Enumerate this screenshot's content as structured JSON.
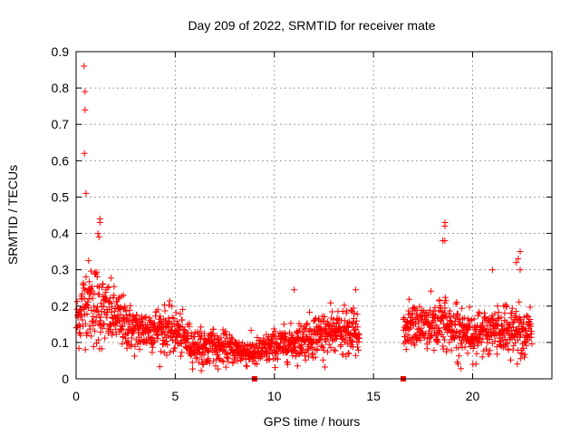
{
  "chart_data": {
    "type": "scatter",
    "title": "Day 209 of 2022, SRMTID for receiver mate",
    "xlabel": "GPS time / hours",
    "ylabel": "SRMTID / TECUs",
    "xlim": [
      0,
      24
    ],
    "ylim": [
      0,
      0.9
    ],
    "x_ticks": [
      0,
      5,
      10,
      15,
      20
    ],
    "y_ticks": [
      0,
      0.1,
      0.2,
      0.3,
      0.4,
      0.5,
      0.6,
      0.7,
      0.8,
      0.9
    ],
    "x_tick_labels": [
      "0",
      "5",
      "10",
      "15",
      "20"
    ],
    "y_tick_labels": [
      "0",
      "0.1",
      "0.2",
      "0.3",
      "0.4",
      "0.5",
      "0.6",
      "0.7",
      "0.8",
      "0.9"
    ],
    "grid": true,
    "legend": "none",
    "marker": "plus",
    "marker_color": "#ff0000",
    "outliers": [
      [
        0.4,
        0.86
      ],
      [
        0.45,
        0.79
      ],
      [
        0.45,
        0.74
      ],
      [
        0.42,
        0.62
      ],
      [
        0.5,
        0.51
      ],
      [
        1.2,
        0.44
      ],
      [
        1.2,
        0.43
      ],
      [
        1.1,
        0.4
      ],
      [
        1.15,
        0.39
      ],
      [
        18.6,
        0.43
      ],
      [
        18.6,
        0.42
      ],
      [
        18.6,
        0.38
      ],
      [
        18.5,
        0.38
      ],
      [
        22.4,
        0.35
      ],
      [
        22.3,
        0.33
      ],
      [
        22.2,
        0.32
      ],
      [
        22.4,
        0.3
      ],
      [
        21.0,
        0.3
      ],
      [
        11.0,
        0.245
      ],
      [
        14.1,
        0.245
      ]
    ],
    "baseline_markers": [
      [
        9.0,
        0.0
      ],
      [
        16.5,
        0.0
      ]
    ],
    "density_profile": [
      {
        "x": 0.0,
        "y": 0.15,
        "s": 0.05
      },
      {
        "x": 0.5,
        "y": 0.22,
        "s": 0.07
      },
      {
        "x": 1.0,
        "y": 0.2,
        "s": 0.08
      },
      {
        "x": 1.5,
        "y": 0.18,
        "s": 0.06
      },
      {
        "x": 2.0,
        "y": 0.17,
        "s": 0.05
      },
      {
        "x": 3.0,
        "y": 0.13,
        "s": 0.04
      },
      {
        "x": 4.0,
        "y": 0.14,
        "s": 0.04
      },
      {
        "x": 5.0,
        "y": 0.13,
        "s": 0.04
      },
      {
        "x": 6.0,
        "y": 0.09,
        "s": 0.03
      },
      {
        "x": 7.0,
        "y": 0.09,
        "s": 0.03
      },
      {
        "x": 8.0,
        "y": 0.08,
        "s": 0.025
      },
      {
        "x": 9.0,
        "y": 0.07,
        "s": 0.025
      },
      {
        "x": 10.0,
        "y": 0.09,
        "s": 0.03
      },
      {
        "x": 11.0,
        "y": 0.1,
        "s": 0.03
      },
      {
        "x": 12.0,
        "y": 0.12,
        "s": 0.04
      },
      {
        "x": 13.0,
        "y": 0.13,
        "s": 0.04
      },
      {
        "x": 14.2,
        "y": 0.12,
        "s": 0.04
      },
      {
        "x": 16.6,
        "y": 0.14,
        "s": 0.04
      },
      {
        "x": 17.5,
        "y": 0.15,
        "s": 0.04
      },
      {
        "x": 18.5,
        "y": 0.15,
        "s": 0.05
      },
      {
        "x": 19.5,
        "y": 0.13,
        "s": 0.04
      },
      {
        "x": 20.5,
        "y": 0.12,
        "s": 0.04
      },
      {
        "x": 21.5,
        "y": 0.14,
        "s": 0.05
      },
      {
        "x": 22.5,
        "y": 0.13,
        "s": 0.05
      },
      {
        "x": 23.0,
        "y": 0.12,
        "s": 0.04
      }
    ],
    "gaps": [
      [
        14.3,
        16.5
      ]
    ]
  }
}
